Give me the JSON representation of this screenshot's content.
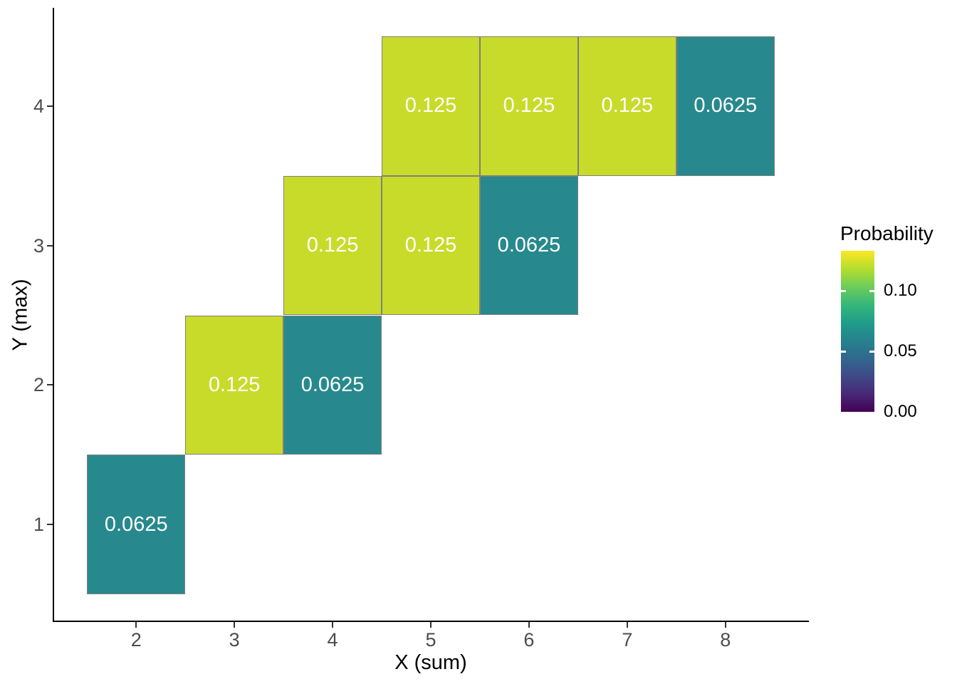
{
  "chart_data": {
    "type": "heatmap",
    "title": "",
    "xlabel": "X (sum)",
    "ylabel": "Y (max)",
    "x_range": [
      1.15,
      8.85
    ],
    "y_range": [
      0.3,
      4.7
    ],
    "grid": false,
    "background": "#FFFFFF",
    "x_ticks": [
      {
        "value": 2,
        "label": "2"
      },
      {
        "value": 3,
        "label": "3"
      },
      {
        "value": 4,
        "label": "4"
      },
      {
        "value": 5,
        "label": "5"
      },
      {
        "value": 6,
        "label": "6"
      },
      {
        "value": 7,
        "label": "7"
      },
      {
        "value": 8,
        "label": "8"
      }
    ],
    "y_ticks": [
      {
        "value": 1,
        "label": "1"
      },
      {
        "value": 2,
        "label": "2"
      },
      {
        "value": 3,
        "label": "3"
      },
      {
        "value": 4,
        "label": "4"
      }
    ],
    "tiles": [
      {
        "x": 2,
        "y": 1,
        "probability": 0.0625,
        "label": "0.0625",
        "color": "#27898D"
      },
      {
        "x": 3,
        "y": 2,
        "probability": 0.125,
        "label": "0.125",
        "color": "#C8DB2A"
      },
      {
        "x": 4,
        "y": 2,
        "probability": 0.0625,
        "label": "0.0625",
        "color": "#27898D"
      },
      {
        "x": 4,
        "y": 3,
        "probability": 0.125,
        "label": "0.125",
        "color": "#C8DB2A"
      },
      {
        "x": 5,
        "y": 3,
        "probability": 0.125,
        "label": "0.125",
        "color": "#C8DB2A"
      },
      {
        "x": 6,
        "y": 3,
        "probability": 0.0625,
        "label": "0.0625",
        "color": "#27898D"
      },
      {
        "x": 5,
        "y": 4,
        "probability": 0.125,
        "label": "0.125",
        "color": "#C8DB2A"
      },
      {
        "x": 6,
        "y": 4,
        "probability": 0.125,
        "label": "0.125",
        "color": "#C8DB2A"
      },
      {
        "x": 7,
        "y": 4,
        "probability": 0.125,
        "label": "0.125",
        "color": "#C8DB2A"
      },
      {
        "x": 8,
        "y": 4,
        "probability": 0.0625,
        "label": "0.0625",
        "color": "#27898D"
      }
    ],
    "legend": {
      "title": "Probability",
      "position": "right",
      "scale_max": 0.1333,
      "ticks": [
        {
          "value": 0.0,
          "label": "0.00"
        },
        {
          "value": 0.05,
          "label": "0.05"
        },
        {
          "value": 0.1,
          "label": "0.10"
        }
      ],
      "colormap_name": "viridis",
      "colormap": [
        "#440154",
        "#482878",
        "#3E4A89",
        "#31688E",
        "#26828E",
        "#1F9E89",
        "#35B779",
        "#6DCD59",
        "#B4DE2C",
        "#FDE725"
      ]
    },
    "styles": {
      "tile_border_color": "#7F7F7F",
      "tile_label_color": "#FFFFFF",
      "axis_line_color": "#000000",
      "tick_mark_color": "#333333",
      "tick_label_color": "#4D4D4D",
      "title_color": "#000000"
    }
  }
}
